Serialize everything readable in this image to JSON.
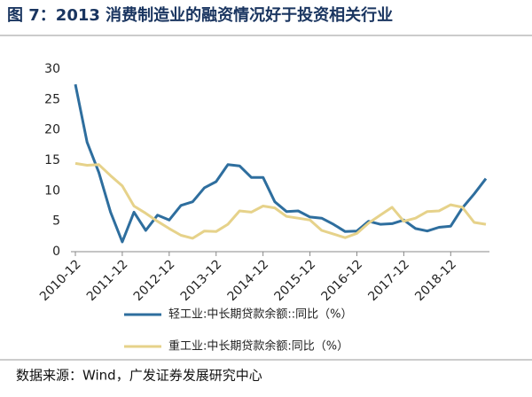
{
  "chart_data": {
    "type": "line",
    "title": "图 7：2013 消费制造业的融资情况好于投资相关行业",
    "source": "数据来源：Wind，广发证券发展研究中心",
    "categories": [
      "2010-12",
      null,
      null,
      null,
      "2011-12",
      null,
      null,
      null,
      "2012-12",
      null,
      null,
      null,
      "2013-12",
      null,
      null,
      null,
      "2014-12",
      null,
      null,
      null,
      "2015-12",
      null,
      null,
      null,
      "2016-12",
      null,
      null,
      null,
      "2017-12",
      null,
      null,
      null,
      "2018-12",
      null,
      null,
      null
    ],
    "series": [
      {
        "name": "轻工业:中长期贷款余额::同比（%）",
        "color": "#2e6e9e",
        "values": [
          27.5,
          18,
          13,
          6.5,
          1.6,
          6.5,
          3.5,
          6,
          5.2,
          7.6,
          8.2,
          10.5,
          11.5,
          14.3,
          14.1,
          12.2,
          12.2,
          8.2,
          6.6,
          6.7,
          5.7,
          5.5,
          4.5,
          3.3,
          3.4,
          5,
          4.5,
          4.6,
          5.2,
          3.8,
          3.4,
          4,
          4.2,
          7.2,
          9.5,
          12
        ]
      },
      {
        "name": "重工业:中长期贷款余额:同比（%）",
        "color": "#e6d28a",
        "values": [
          14.5,
          14.2,
          14.3,
          12.5,
          10.8,
          7.5,
          6.3,
          5,
          3.8,
          2.7,
          2.2,
          3.4,
          3.3,
          4.5,
          6.7,
          6.5,
          7.5,
          7.2,
          5.8,
          5.5,
          5.2,
          3.5,
          2.9,
          2.3,
          3,
          4.7,
          6,
          7.3,
          5,
          5.5,
          6.6,
          6.7,
          7.7,
          7.3,
          4.8,
          4.5
        ]
      }
    ],
    "ylim": [
      0,
      30
    ],
    "yticks": [
      0,
      5,
      10,
      15,
      20,
      25,
      30
    ],
    "legend": "bottom"
  }
}
